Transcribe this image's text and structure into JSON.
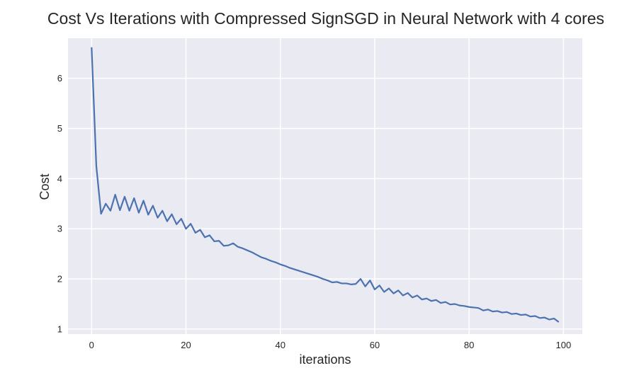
{
  "colors": {
    "plot_background": "#EAEAF2",
    "grid": "#FFFFFF",
    "line": "#4C72B0",
    "text": "#262626"
  },
  "chart_data": {
    "type": "line",
    "title": "Cost Vs Iterations with Compressed SignSGD in Neural Network with 4 cores",
    "xlabel": "iterations",
    "ylabel": "Cost",
    "xlim": [
      -5,
      104
    ],
    "ylim": [
      0.9,
      6.8
    ],
    "xticks": [
      0,
      20,
      40,
      60,
      80,
      100
    ],
    "yticks": [
      1,
      2,
      3,
      4,
      5,
      6
    ],
    "grid": true,
    "legend": "none",
    "series": [
      {
        "x": [
          0,
          1,
          2,
          3,
          4,
          5,
          6,
          7,
          8,
          9,
          10,
          11,
          12,
          13,
          14,
          15,
          16,
          17,
          18,
          19,
          20,
          21,
          22,
          23,
          24,
          25,
          26,
          27,
          28,
          29,
          30,
          31,
          32,
          33,
          34,
          35,
          36,
          37,
          38,
          39,
          40,
          41,
          42,
          43,
          44,
          45,
          46,
          47,
          48,
          49,
          50,
          51,
          52,
          53,
          54,
          55,
          56,
          57,
          58,
          59,
          60,
          61,
          62,
          63,
          64,
          65,
          66,
          67,
          68,
          69,
          70,
          71,
          72,
          73,
          74,
          75,
          76,
          77,
          78,
          79,
          80,
          81,
          82,
          83,
          84,
          85,
          86,
          87,
          88,
          89,
          90,
          91,
          92,
          93,
          94,
          95,
          96,
          97,
          98,
          99
        ],
        "values": [
          6.62,
          4.25,
          3.3,
          3.5,
          3.36,
          3.68,
          3.37,
          3.64,
          3.36,
          3.61,
          3.32,
          3.56,
          3.28,
          3.46,
          3.22,
          3.36,
          3.15,
          3.29,
          3.09,
          3.2,
          3.0,
          3.1,
          2.92,
          2.98,
          2.83,
          2.87,
          2.75,
          2.76,
          2.66,
          2.67,
          2.71,
          2.64,
          2.61,
          2.57,
          2.53,
          2.48,
          2.43,
          2.4,
          2.36,
          2.33,
          2.29,
          2.26,
          2.22,
          2.19,
          2.16,
          2.13,
          2.1,
          2.07,
          2.04,
          2.0,
          1.97,
          1.93,
          1.94,
          1.91,
          1.91,
          1.89,
          1.9,
          2.0,
          1.85,
          1.97,
          1.79,
          1.87,
          1.74,
          1.81,
          1.71,
          1.77,
          1.67,
          1.72,
          1.63,
          1.67,
          1.59,
          1.61,
          1.56,
          1.58,
          1.52,
          1.54,
          1.49,
          1.5,
          1.47,
          1.46,
          1.44,
          1.43,
          1.42,
          1.37,
          1.39,
          1.35,
          1.36,
          1.33,
          1.34,
          1.3,
          1.31,
          1.28,
          1.29,
          1.25,
          1.26,
          1.22,
          1.23,
          1.19,
          1.21,
          1.14
        ]
      }
    ]
  }
}
